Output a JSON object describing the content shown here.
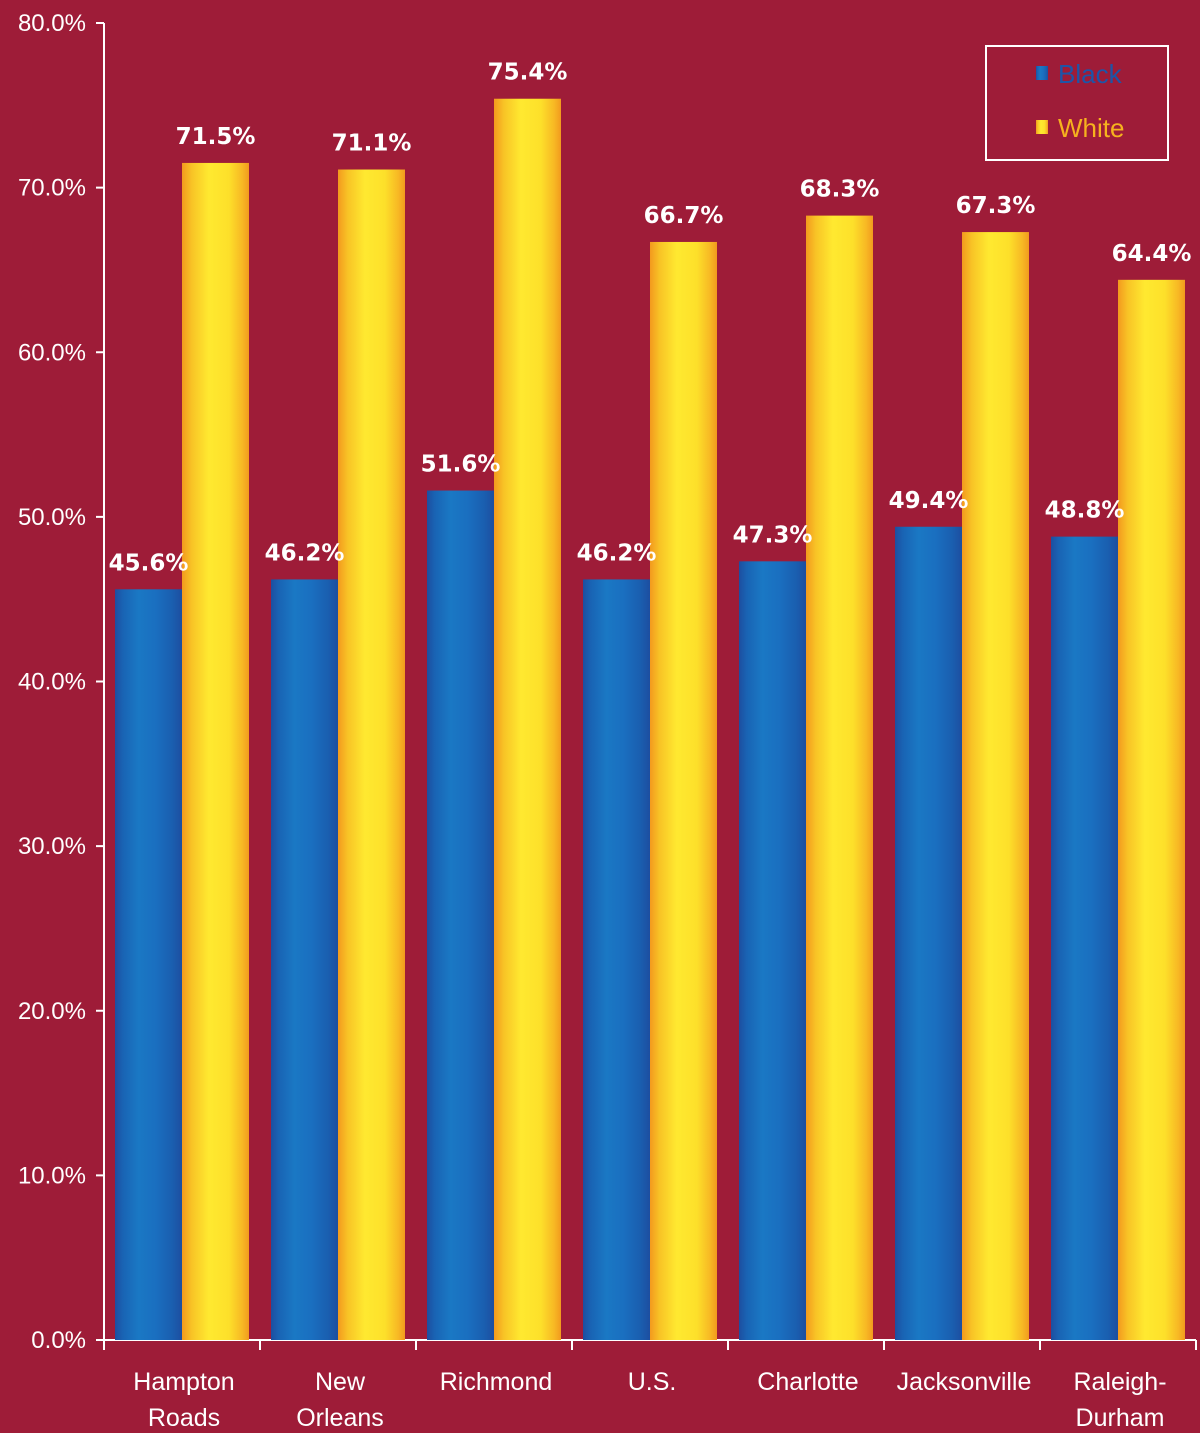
{
  "chart_data": {
    "type": "bar",
    "categories": [
      [
        "Hampton",
        "Roads"
      ],
      [
        "New",
        "Orleans"
      ],
      [
        "Richmond"
      ],
      [
        "U.S."
      ],
      [
        "Charlotte"
      ],
      [
        "Jacksonville"
      ],
      [
        "Raleigh-",
        "Durham"
      ]
    ],
    "series": [
      {
        "name": "Black",
        "values": [
          45.6,
          46.2,
          51.6,
          46.2,
          47.3,
          49.4,
          48.8
        ],
        "labels": [
          "45.6%",
          "46.2%",
          "51.6%",
          "46.2%",
          "47.3%",
          "49.4%",
          "48.8%"
        ],
        "color": "#1a72bf"
      },
      {
        "name": "White",
        "values": [
          71.5,
          71.1,
          75.4,
          66.7,
          68.3,
          67.3,
          64.4
        ],
        "labels": [
          "71.5%",
          "71.1%",
          "75.4%",
          "66.7%",
          "68.3%",
          "67.3%",
          "64.4%"
        ],
        "color": "#fde12a"
      }
    ],
    "y_ticks": [
      "0.0%",
      "10.0%",
      "20.0%",
      "30.0%",
      "40.0%",
      "50.0%",
      "60.0%",
      "70.0%",
      "80.0%"
    ],
    "ylim": [
      0,
      80
    ],
    "title": "",
    "xlabel": "",
    "ylabel": "",
    "grid": false,
    "legend_position": "top-right",
    "colors": {
      "background": "#9e1c38",
      "axis": "#ffffff",
      "text": "#ffffff",
      "black_legend_text": "#1d55a8",
      "white_legend_text": "#f6b21e"
    }
  }
}
